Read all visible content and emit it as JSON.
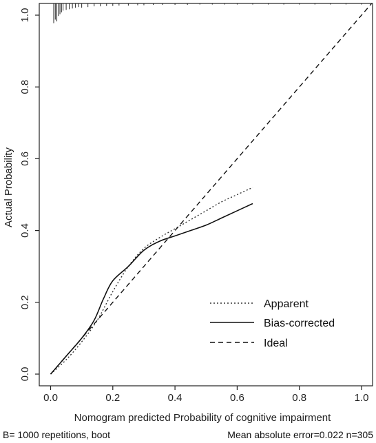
{
  "chart_data": {
    "type": "line",
    "xlabel": "Nomogram predicted Probability of cognitive impairment",
    "ylabel": "Actual Probability",
    "xlim": [
      0.0,
      1.0
    ],
    "ylim": [
      0.0,
      1.0
    ],
    "x_ticks": [
      "0.0",
      "0.2",
      "0.4",
      "0.6",
      "0.8",
      "1.0"
    ],
    "y_ticks": [
      "0.0",
      "0.2",
      "0.4",
      "0.6",
      "0.8",
      "1.0"
    ],
    "legend_position": "bottom-right",
    "grid": false,
    "series": [
      {
        "name": "Apparent",
        "style": "dotted",
        "color": "#333333",
        "points": [
          [
            0.0,
            0.0
          ],
          [
            0.05,
            0.04
          ],
          [
            0.1,
            0.09
          ],
          [
            0.15,
            0.15
          ],
          [
            0.2,
            0.23
          ],
          [
            0.25,
            0.3
          ],
          [
            0.3,
            0.35
          ],
          [
            0.35,
            0.38
          ],
          [
            0.4,
            0.405
          ],
          [
            0.45,
            0.43
          ],
          [
            0.5,
            0.455
          ],
          [
            0.55,
            0.48
          ],
          [
            0.6,
            0.5
          ],
          [
            0.65,
            0.52
          ]
        ]
      },
      {
        "name": "Bias-corrected",
        "style": "solid",
        "color": "#111111",
        "points": [
          [
            0.0,
            0.0
          ],
          [
            0.05,
            0.05
          ],
          [
            0.1,
            0.1
          ],
          [
            0.14,
            0.15
          ],
          [
            0.17,
            0.21
          ],
          [
            0.2,
            0.26
          ],
          [
            0.25,
            0.3
          ],
          [
            0.3,
            0.345
          ],
          [
            0.35,
            0.37
          ],
          [
            0.4,
            0.385
          ],
          [
            0.45,
            0.4
          ],
          [
            0.5,
            0.415
          ],
          [
            0.55,
            0.435
          ],
          [
            0.6,
            0.455
          ],
          [
            0.65,
            0.475
          ]
        ]
      },
      {
        "name": "Ideal",
        "style": "dashed",
        "color": "#111111",
        "points": [
          [
            0.0,
            0.0
          ],
          [
            1.05,
            1.05
          ]
        ]
      }
    ],
    "rug": {
      "x": [
        0.01,
        0.015,
        0.02,
        0.025,
        0.03,
        0.035,
        0.04,
        0.05,
        0.06,
        0.07,
        0.08,
        0.09,
        0.1,
        0.12,
        0.14,
        0.16,
        0.18,
        0.2,
        0.22,
        0.25,
        0.28,
        0.3,
        0.33,
        0.36,
        0.4,
        0.44,
        0.48,
        0.52,
        0.56,
        0.6,
        0.65,
        0.7,
        0.75,
        0.8,
        0.85,
        0.9,
        0.95,
        1.0
      ],
      "heights": [
        0.055,
        0.045,
        0.05,
        0.035,
        0.03,
        0.025,
        0.02,
        0.018,
        0.016,
        0.014,
        0.012,
        0.01,
        0.012,
        0.01,
        0.008,
        0.008,
        0.007,
        0.007,
        0.006,
        0.006,
        0.005,
        0.005,
        0.004,
        0.004,
        0.004,
        0.004,
        0.003,
        0.003,
        0.003,
        0.003,
        0.003,
        0.003,
        0.003,
        0.003,
        0.003,
        0.003,
        0.003,
        0.003
      ]
    }
  },
  "footer": {
    "left": "B= 1000 repetitions, boot",
    "right": "Mean absolute error=0.022 n=305"
  }
}
